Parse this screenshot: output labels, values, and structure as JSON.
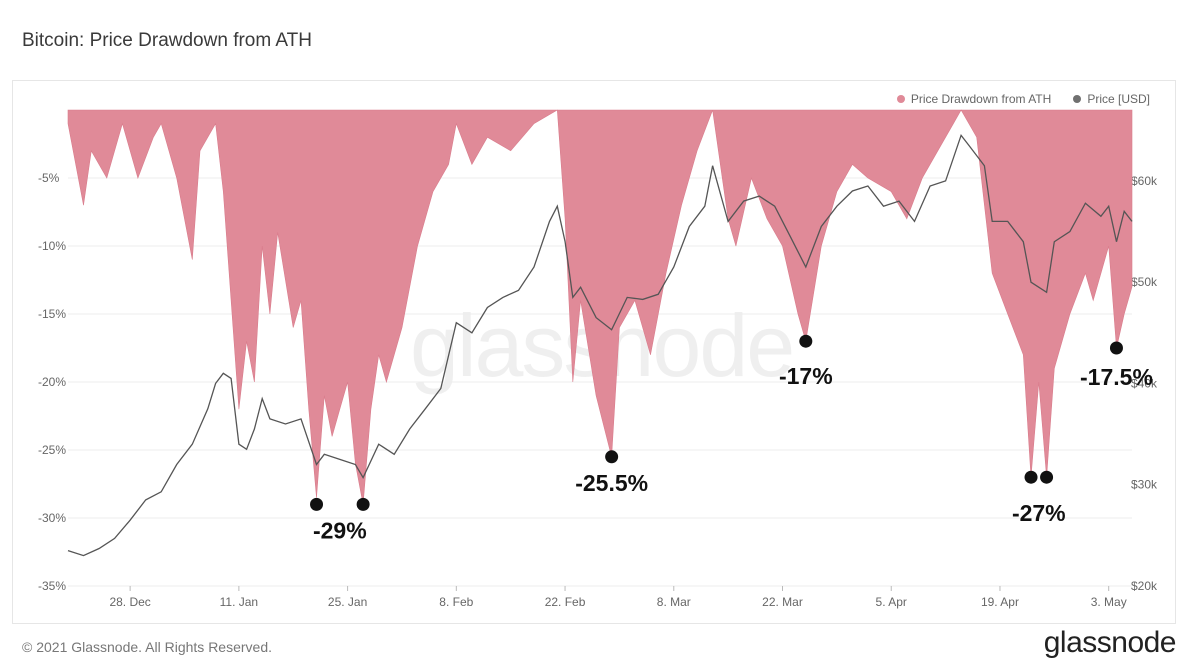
{
  "page": {
    "title": "Bitcoin: Price Drawdown from ATH",
    "copyright": "© 2021 Glassnode. All Rights Reserved.",
    "brand": "glassnode",
    "watermark": "glassnode"
  },
  "colors": {
    "drawdown": "#e08a98",
    "price": "#555555",
    "legend_price": "#707070",
    "grid": "#ececec"
  },
  "chart_data": {
    "type": "area",
    "title": "Bitcoin: Price Drawdown from ATH",
    "legend": [
      {
        "name": "Price Drawdown from ATH",
        "color": "#e08a98"
      },
      {
        "name": "Price [USD]",
        "color": "#707070"
      }
    ],
    "legend_position": "top-right",
    "x_tick_labels": [
      "28. Dec",
      "11. Jan",
      "25. Jan",
      "8. Feb",
      "22. Feb",
      "8. Mar",
      "22. Mar",
      "5. Apr",
      "19. Apr",
      "3. May"
    ],
    "x_range": [
      "2020-12-20",
      "2021-05-06"
    ],
    "y_left": {
      "ticks": [
        "-5%",
        "-10%",
        "-15%",
        "-20%",
        "-25%",
        "-30%",
        "-35%"
      ],
      "range": [
        -35,
        0
      ]
    },
    "y_right": {
      "ticks": [
        "$60k",
        "$50k",
        "$40k",
        "$30k",
        "$20k"
      ],
      "range": [
        20000,
        67000
      ]
    },
    "series": [
      {
        "name": "Price Drawdown from ATH",
        "axis": "left",
        "points": [
          [
            "2020-12-20",
            -1
          ],
          [
            "2020-12-22",
            -7
          ],
          [
            "2020-12-23",
            -3
          ],
          [
            "2020-12-25",
            -5
          ],
          [
            "2020-12-27",
            -1
          ],
          [
            "2020-12-29",
            -5
          ],
          [
            "2020-12-31",
            -2
          ],
          [
            "2021-01-01",
            -1
          ],
          [
            "2021-01-03",
            -5
          ],
          [
            "2021-01-05",
            -11
          ],
          [
            "2021-01-06",
            -3
          ],
          [
            "2021-01-08",
            -1
          ],
          [
            "2021-01-09",
            -6
          ],
          [
            "2021-01-11",
            -22
          ],
          [
            "2021-01-12",
            -17
          ],
          [
            "2021-01-13",
            -20
          ],
          [
            "2021-01-14",
            -10
          ],
          [
            "2021-01-15",
            -15
          ],
          [
            "2021-01-16",
            -9
          ],
          [
            "2021-01-18",
            -16
          ],
          [
            "2021-01-19",
            -14
          ],
          [
            "2021-01-20",
            -22
          ],
          [
            "2021-01-21",
            -28.5
          ],
          [
            "2021-01-22",
            -21
          ],
          [
            "2021-01-23",
            -24
          ],
          [
            "2021-01-24",
            -22
          ],
          [
            "2021-01-25",
            -20
          ],
          [
            "2021-01-26",
            -26
          ],
          [
            "2021-01-27",
            -29
          ],
          [
            "2021-01-28",
            -22
          ],
          [
            "2021-01-29",
            -18
          ],
          [
            "2021-01-30",
            -20
          ],
          [
            "2021-02-01",
            -16
          ],
          [
            "2021-02-03",
            -10
          ],
          [
            "2021-02-05",
            -6
          ],
          [
            "2021-02-07",
            -4
          ],
          [
            "2021-02-08",
            -1
          ],
          [
            "2021-02-10",
            -4
          ],
          [
            "2021-02-12",
            -2
          ],
          [
            "2021-02-15",
            -3
          ],
          [
            "2021-02-18",
            -1
          ],
          [
            "2021-02-21",
            0
          ],
          [
            "2021-02-22",
            -8
          ],
          [
            "2021-02-23",
            -20
          ],
          [
            "2021-02-24",
            -14
          ],
          [
            "2021-02-26",
            -21
          ],
          [
            "2021-02-28",
            -25.5
          ],
          [
            "2021-03-01",
            -16
          ],
          [
            "2021-03-03",
            -14
          ],
          [
            "2021-03-05",
            -18
          ],
          [
            "2021-03-07",
            -12
          ],
          [
            "2021-03-09",
            -7
          ],
          [
            "2021-03-11",
            -3
          ],
          [
            "2021-03-13",
            0
          ],
          [
            "2021-03-15",
            -8
          ],
          [
            "2021-03-16",
            -10
          ],
          [
            "2021-03-18",
            -5
          ],
          [
            "2021-03-20",
            -8
          ],
          [
            "2021-03-22",
            -10
          ],
          [
            "2021-03-24",
            -15
          ],
          [
            "2021-03-25",
            -17
          ],
          [
            "2021-03-27",
            -10
          ],
          [
            "2021-03-29",
            -6
          ],
          [
            "2021-03-31",
            -4
          ],
          [
            "2021-04-02",
            -5
          ],
          [
            "2021-04-05",
            -6
          ],
          [
            "2021-04-07",
            -8
          ],
          [
            "2021-04-09",
            -5
          ],
          [
            "2021-04-11",
            -3
          ],
          [
            "2021-04-13",
            -1
          ],
          [
            "2021-04-14",
            0
          ],
          [
            "2021-04-16",
            -2
          ],
          [
            "2021-04-18",
            -12
          ],
          [
            "2021-04-20",
            -15
          ],
          [
            "2021-04-22",
            -18
          ],
          [
            "2021-04-23",
            -27
          ],
          [
            "2021-04-24",
            -20
          ],
          [
            "2021-04-25",
            -27
          ],
          [
            "2021-04-26",
            -19
          ],
          [
            "2021-04-28",
            -15
          ],
          [
            "2021-04-30",
            -12
          ],
          [
            "2021-05-01",
            -14
          ],
          [
            "2021-05-03",
            -10
          ],
          [
            "2021-05-04",
            -17.5
          ],
          [
            "2021-05-05",
            -15
          ],
          [
            "2021-05-06",
            -13
          ]
        ]
      },
      {
        "name": "Price [USD]",
        "axis": "right",
        "points": [
          [
            "2020-12-20",
            23500
          ],
          [
            "2020-12-22",
            23000
          ],
          [
            "2020-12-24",
            23700
          ],
          [
            "2020-12-26",
            24700
          ],
          [
            "2020-12-28",
            26500
          ],
          [
            "2020-12-30",
            28500
          ],
          [
            "2021-01-01",
            29300
          ],
          [
            "2021-01-03",
            32000
          ],
          [
            "2021-01-05",
            34000
          ],
          [
            "2021-01-07",
            37500
          ],
          [
            "2021-01-08",
            40000
          ],
          [
            "2021-01-09",
            41000
          ],
          [
            "2021-01-10",
            40500
          ],
          [
            "2021-01-11",
            34000
          ],
          [
            "2021-01-12",
            33500
          ],
          [
            "2021-01-13",
            35500
          ],
          [
            "2021-01-14",
            38500
          ],
          [
            "2021-01-15",
            36500
          ],
          [
            "2021-01-17",
            36000
          ],
          [
            "2021-01-19",
            36500
          ],
          [
            "2021-01-21",
            32000
          ],
          [
            "2021-01-22",
            33000
          ],
          [
            "2021-01-24",
            32500
          ],
          [
            "2021-01-26",
            32000
          ],
          [
            "2021-01-27",
            30700
          ],
          [
            "2021-01-29",
            34000
          ],
          [
            "2021-01-31",
            33000
          ],
          [
            "2021-02-02",
            35500
          ],
          [
            "2021-02-04",
            37500
          ],
          [
            "2021-02-06",
            39500
          ],
          [
            "2021-02-08",
            46000
          ],
          [
            "2021-02-10",
            45000
          ],
          [
            "2021-02-12",
            47500
          ],
          [
            "2021-02-14",
            48500
          ],
          [
            "2021-02-16",
            49200
          ],
          [
            "2021-02-18",
            51500
          ],
          [
            "2021-02-20",
            56000
          ],
          [
            "2021-02-21",
            57500
          ],
          [
            "2021-02-22",
            54000
          ],
          [
            "2021-02-23",
            48500
          ],
          [
            "2021-02-24",
            49500
          ],
          [
            "2021-02-26",
            46500
          ],
          [
            "2021-02-28",
            45300
          ],
          [
            "2021-03-02",
            48500
          ],
          [
            "2021-03-04",
            48300
          ],
          [
            "2021-03-06",
            48800
          ],
          [
            "2021-03-08",
            51500
          ],
          [
            "2021-03-10",
            55500
          ],
          [
            "2021-03-12",
            57500
          ],
          [
            "2021-03-13",
            61500
          ],
          [
            "2021-03-15",
            56000
          ],
          [
            "2021-03-17",
            58000
          ],
          [
            "2021-03-19",
            58500
          ],
          [
            "2021-03-21",
            57500
          ],
          [
            "2021-03-23",
            54500
          ],
          [
            "2021-03-25",
            51500
          ],
          [
            "2021-03-27",
            55500
          ],
          [
            "2021-03-29",
            57500
          ],
          [
            "2021-03-31",
            59000
          ],
          [
            "2021-04-02",
            59500
          ],
          [
            "2021-04-04",
            57500
          ],
          [
            "2021-04-06",
            58000
          ],
          [
            "2021-04-08",
            56000
          ],
          [
            "2021-04-10",
            59500
          ],
          [
            "2021-04-12",
            60000
          ],
          [
            "2021-04-14",
            64500
          ],
          [
            "2021-04-15",
            63500
          ],
          [
            "2021-04-17",
            61500
          ],
          [
            "2021-04-18",
            56000
          ],
          [
            "2021-04-20",
            56000
          ],
          [
            "2021-04-22",
            54000
          ],
          [
            "2021-04-23",
            50000
          ],
          [
            "2021-04-25",
            49000
          ],
          [
            "2021-04-26",
            54000
          ],
          [
            "2021-04-28",
            55000
          ],
          [
            "2021-04-30",
            57800
          ],
          [
            "2021-05-02",
            56500
          ],
          [
            "2021-05-03",
            57500
          ],
          [
            "2021-05-04",
            54000
          ],
          [
            "2021-05-05",
            57000
          ],
          [
            "2021-05-06",
            56000
          ]
        ]
      }
    ],
    "annotations": [
      {
        "label": "-29%",
        "date": "2021-01-21",
        "value": -29
      },
      {
        "label": "-29%",
        "date": "2021-01-27",
        "value": -29
      },
      {
        "label": "-25.5%",
        "date": "2021-02-28",
        "value": -25.5
      },
      {
        "label": "-17%",
        "date": "2021-03-25",
        "value": -17
      },
      {
        "label": "-27%",
        "date": "2021-04-23",
        "value": -27
      },
      {
        "label": "-27%",
        "date": "2021-04-25",
        "value": -27
      },
      {
        "label": "-17.5%",
        "date": "2021-05-04",
        "value": -17.5
      }
    ],
    "annotation_labels": [
      "-29%",
      "-25.5%",
      "-17%",
      "-27%",
      "-17.5%"
    ]
  }
}
